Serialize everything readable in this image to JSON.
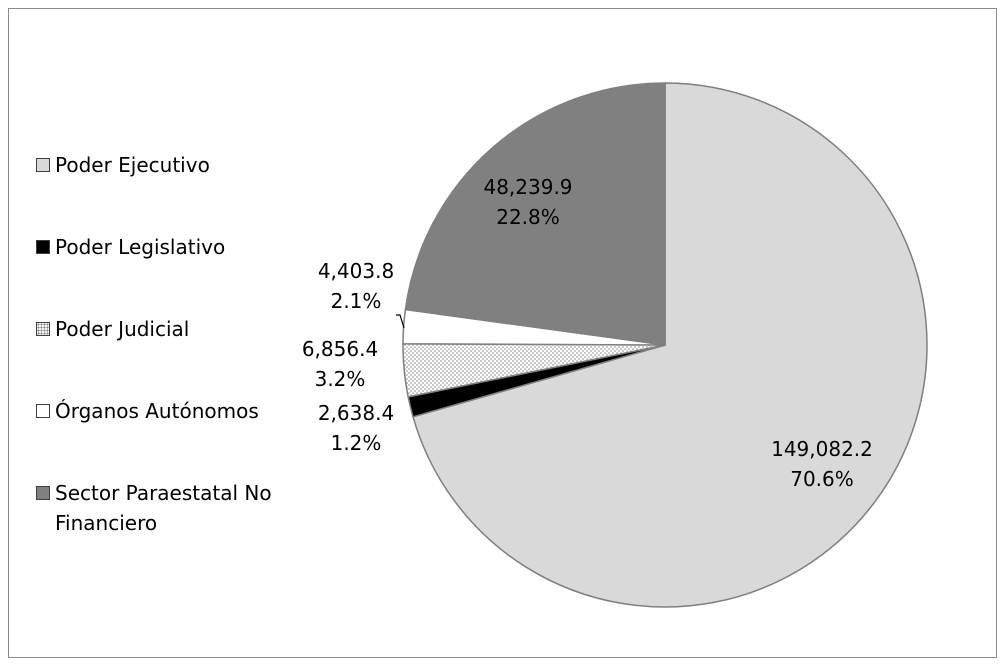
{
  "chart_data": {
    "type": "pie",
    "title": "",
    "start_angle_deg": 0,
    "direction": "clockwise",
    "legend_position": "left",
    "slices": [
      {
        "name": "Poder Ejecutivo",
        "value": 149082.2,
        "value_label": "149,082.2",
        "percent_label": "70.6%",
        "color": "#d9d9d9",
        "pattern": "solid"
      },
      {
        "name": "Poder Legislativo",
        "value": 2638.4,
        "value_label": "2,638.4",
        "percent_label": "1.2%",
        "color": "#000000",
        "pattern": "solid"
      },
      {
        "name": "Poder Judicial",
        "value": 6856.4,
        "value_label": "6,856.4",
        "percent_label": "3.2%",
        "color": "#ffffff",
        "pattern": "dotted"
      },
      {
        "name": "Órganos Autónomos",
        "value": 4403.8,
        "value_label": "4,403.8",
        "percent_label": "2.1%",
        "color": "#ffffff",
        "pattern": "solid"
      },
      {
        "name": "Sector Paraestatal No Financiero",
        "value": 48239.9,
        "value_label": "48,239.9",
        "percent_label": "22.8%",
        "color": "#808080",
        "pattern": "solid"
      }
    ]
  }
}
